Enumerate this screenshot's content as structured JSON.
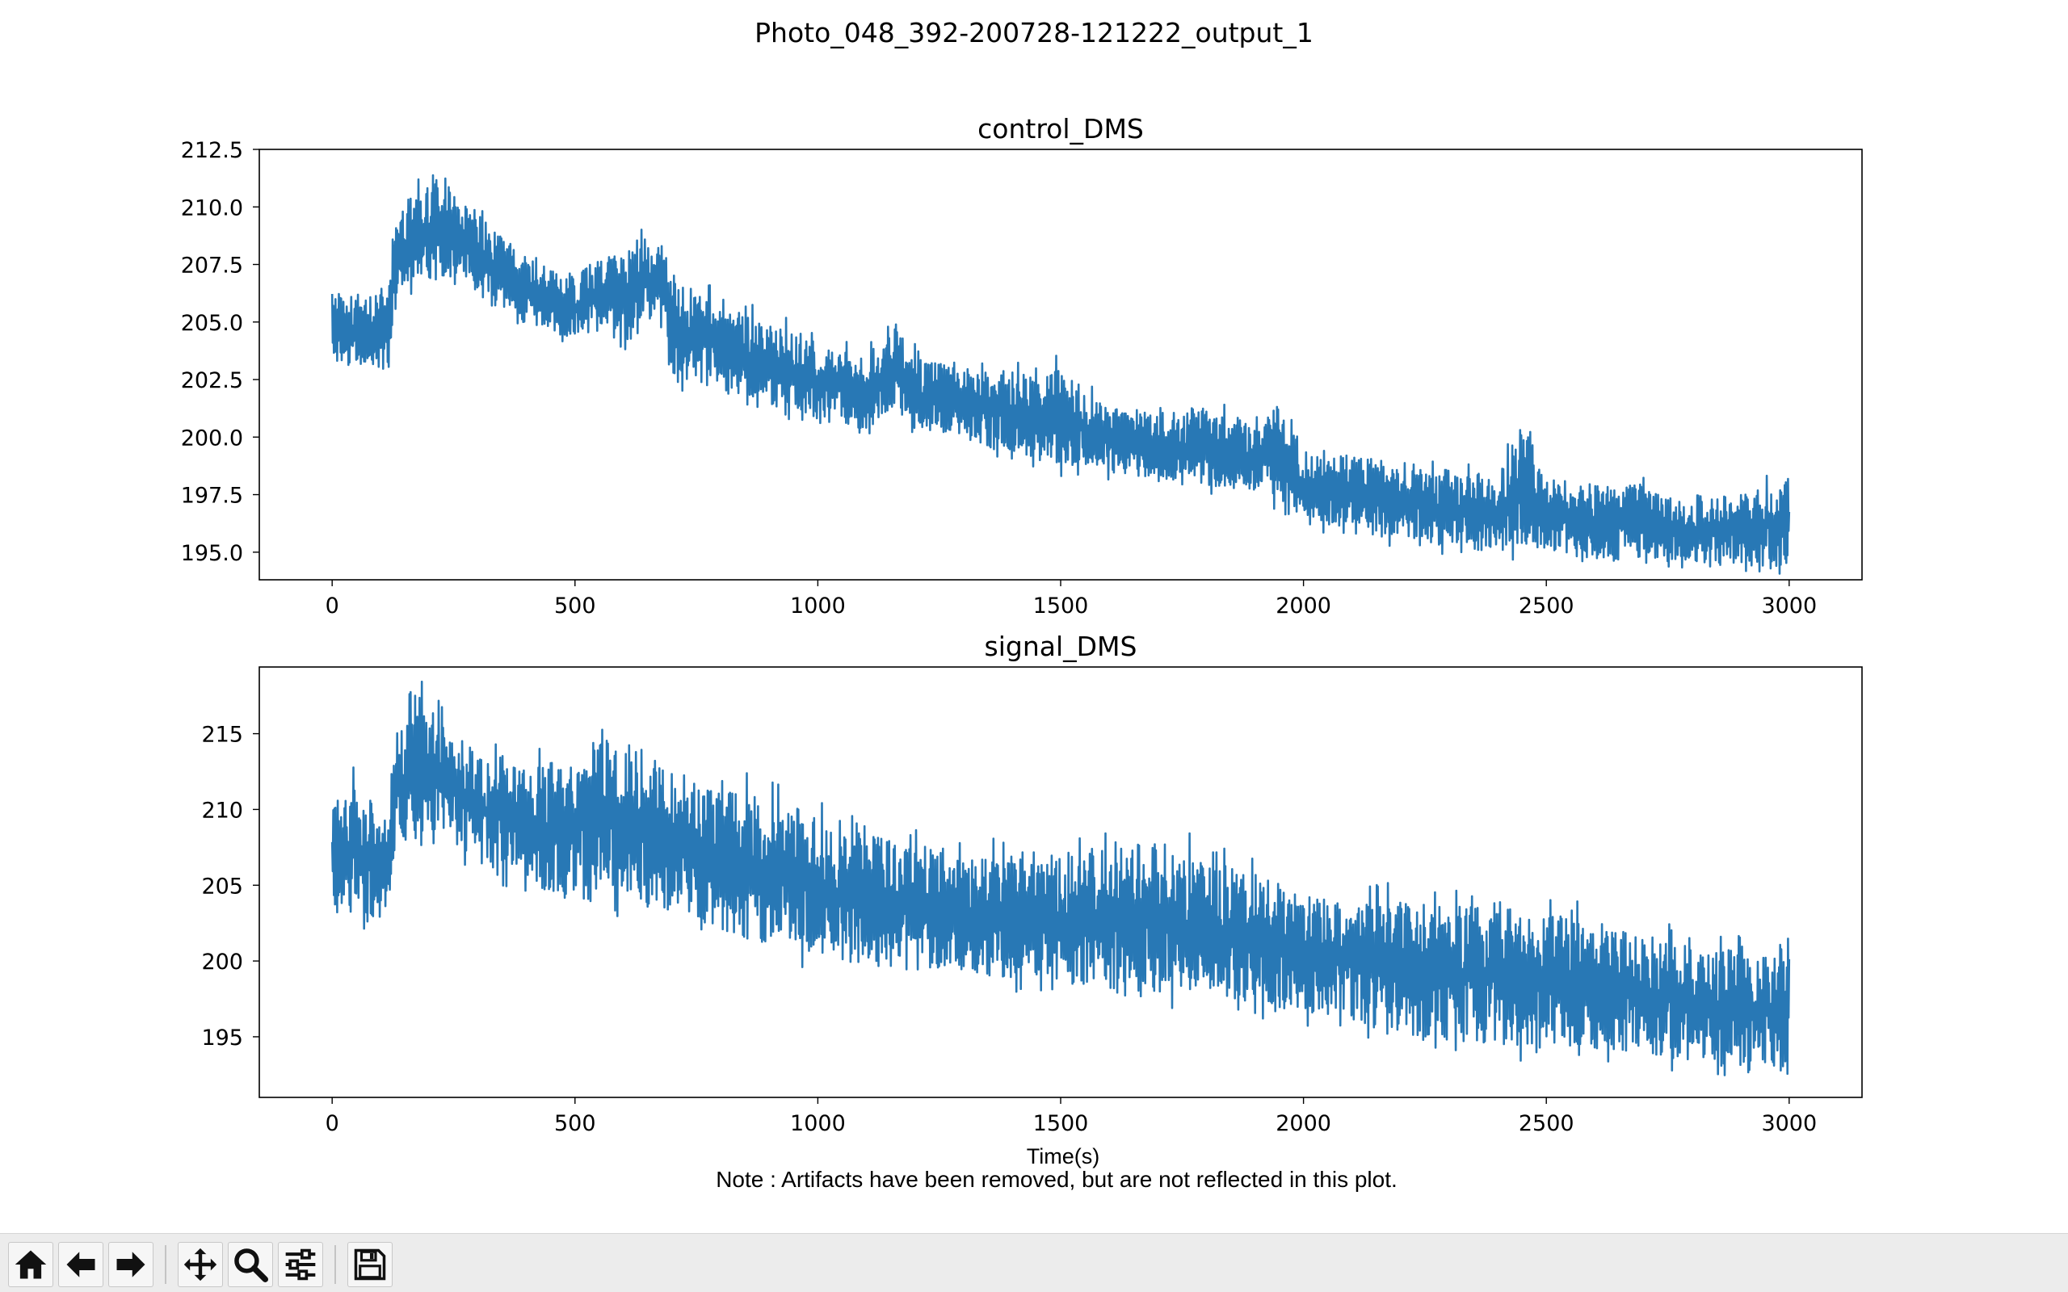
{
  "figure": {
    "suptitle": "Photo_048_392-200728-121222_output_1",
    "note": "Note : Artifacts have been removed, but are not reflected in this plot."
  },
  "colors": {
    "series": "#2878b5",
    "toolbar_bg": "#ececec"
  },
  "toolbar": {
    "buttons": [
      {
        "name": "home-button",
        "icon": "home-icon"
      },
      {
        "name": "back-button",
        "icon": "arrow-left-icon"
      },
      {
        "name": "forward-button",
        "icon": "arrow-right-icon"
      },
      {
        "name": "pan-button",
        "icon": "move-icon"
      },
      {
        "name": "zoom-button",
        "icon": "magnifier-icon"
      },
      {
        "name": "configure-subplots-button",
        "icon": "sliders-icon"
      },
      {
        "name": "save-button",
        "icon": "floppy-disk-icon"
      }
    ]
  },
  "chart_data": [
    {
      "type": "line",
      "title": "control_DMS",
      "xlabel": "",
      "ylabel": "",
      "xlim": [
        -150,
        3150
      ],
      "ylim": [
        193.8,
        212.5
      ],
      "xticks": [
        0,
        500,
        1000,
        1500,
        2000,
        2500,
        3000
      ],
      "yticks": [
        195.0,
        197.5,
        200.0,
        202.5,
        205.0,
        207.5,
        210.0,
        212.5
      ],
      "ytick_labels": [
        "195.0",
        "197.5",
        "200.0",
        "202.5",
        "205.0",
        "207.5",
        "210.0",
        "212.5"
      ],
      "grid": false,
      "series": [
        {
          "color": "#2878b5",
          "x": [
            0,
            60,
            118,
            128,
            170,
            230,
            280,
            330,
            400,
            500,
            560,
            610,
            650,
            680,
            700,
            800,
            900,
            1000,
            1100,
            1150,
            1200,
            1300,
            1400,
            1500,
            1600,
            1700,
            1800,
            1900,
            1950,
            2000,
            2100,
            2200,
            2300,
            2400,
            2450,
            2500,
            2600,
            2700,
            2800,
            2900,
            3000
          ],
          "y_upper": [
            206.3,
            206.2,
            206.5,
            209.5,
            210.6,
            211.2,
            210.3,
            209.0,
            207.8,
            207.0,
            208.0,
            207.8,
            208.8,
            208.4,
            206.8,
            205.8,
            205.0,
            204.1,
            203.4,
            205.0,
            203.6,
            203.0,
            202.7,
            203.0,
            201.3,
            201.0,
            201.2,
            200.5,
            201.5,
            199.4,
            199.3,
            198.9,
            198.6,
            198.3,
            200.6,
            198.4,
            197.9,
            197.8,
            197.1,
            197.6,
            198.2
          ],
          "y_lower": [
            203.3,
            203.0,
            202.6,
            205.8,
            206.8,
            207.0,
            206.2,
            205.6,
            204.8,
            204.3,
            204.8,
            204.0,
            205.0,
            204.7,
            202.6,
            202.1,
            201.4,
            200.8,
            200.2,
            201.3,
            200.2,
            199.8,
            199.4,
            198.8,
            198.4,
            198.2,
            197.9,
            197.5,
            197.3,
            196.2,
            196.0,
            195.4,
            195.2,
            194.9,
            195.4,
            195.1,
            194.6,
            194.8,
            194.6,
            194.4,
            194.4
          ]
        }
      ]
    },
    {
      "type": "line",
      "title": "signal_DMS",
      "xlabel": "Time(s)",
      "ylabel": "",
      "xlim": [
        -150,
        3150
      ],
      "ylim": [
        191.0,
        219.4
      ],
      "xticks": [
        0,
        500,
        1000,
        1500,
        2000,
        2500,
        3000
      ],
      "yticks": [
        195,
        200,
        205,
        210,
        215
      ],
      "ytick_labels": [
        "195",
        "200",
        "205",
        "210",
        "215"
      ],
      "grid": false,
      "series": [
        {
          "color": "#2878b5",
          "x": [
            0,
            40,
            118,
            128,
            185,
            230,
            300,
            400,
            490,
            550,
            600,
            680,
            750,
            850,
            950,
            1050,
            1150,
            1250,
            1350,
            1450,
            1550,
            1600,
            1700,
            1800,
            1900,
            2000,
            2100,
            2200,
            2300,
            2400,
            2500,
            2600,
            2700,
            2800,
            2900,
            3000
          ],
          "y_upper": [
            210.2,
            212.0,
            209.2,
            214.8,
            218.2,
            215.5,
            213.8,
            212.5,
            214.0,
            215.4,
            214.5,
            213.5,
            211.8,
            211.0,
            210.3,
            208.9,
            208.0,
            207.5,
            207.0,
            206.8,
            207.0,
            207.5,
            208.0,
            206.5,
            205.5,
            204.3,
            203.8,
            204.0,
            203.5,
            204.0,
            203.0,
            202.5,
            201.8,
            201.0,
            200.8,
            200.5
          ],
          "y_lower": [
            203.2,
            203.0,
            202.8,
            207.5,
            208.5,
            208.2,
            206.5,
            205.2,
            203.7,
            204.0,
            204.2,
            203.5,
            202.8,
            201.5,
            200.8,
            200.0,
            199.5,
            199.3,
            199.0,
            198.8,
            198.4,
            198.0,
            197.7,
            197.6,
            197.3,
            196.5,
            196.0,
            195.2,
            194.8,
            194.5,
            194.5,
            194.2,
            194.0,
            193.2,
            192.6,
            192.8
          ]
        }
      ]
    }
  ]
}
